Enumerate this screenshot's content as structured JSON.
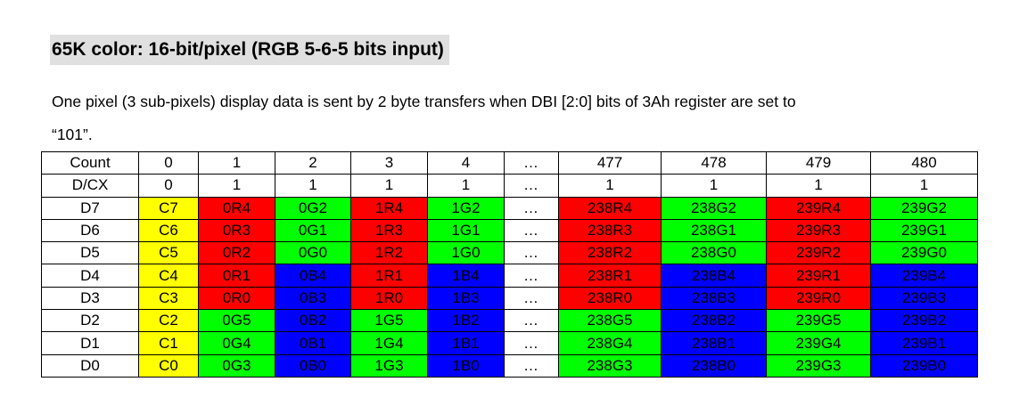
{
  "heading": "65K color: 16-bit/pixel (RGB 5-6-5 bits input)",
  "paragraph": {
    "line1": "One pixel (3 sub-pixels) display data is sent by 2 byte transfers when DBI [2:0] bits of 3Ah register are set to",
    "line2": "“101”."
  },
  "colors": {
    "yellow": "#ffff00",
    "red": "#ff0000",
    "green": "#00ff00",
    "blue": "#0000ff",
    "heading_bg": "#e0e0e0"
  },
  "table": {
    "rows": [
      {
        "label": "Count",
        "cells": [
          {
            "t": "0",
            "c": "w"
          },
          {
            "t": "1",
            "c": "w"
          },
          {
            "t": "2",
            "c": "w"
          },
          {
            "t": "3",
            "c": "w"
          },
          {
            "t": "4",
            "c": "w"
          },
          {
            "t": "…",
            "c": "w"
          },
          {
            "t": "477",
            "c": "w"
          },
          {
            "t": "478",
            "c": "w"
          },
          {
            "t": "479",
            "c": "w"
          },
          {
            "t": "480",
            "c": "w"
          }
        ]
      },
      {
        "label": "D/CX",
        "cells": [
          {
            "t": "0",
            "c": "w"
          },
          {
            "t": "1",
            "c": "w"
          },
          {
            "t": "1",
            "c": "w"
          },
          {
            "t": "1",
            "c": "w"
          },
          {
            "t": "1",
            "c": "w"
          },
          {
            "t": "…",
            "c": "w"
          },
          {
            "t": "1",
            "c": "w"
          },
          {
            "t": "1",
            "c": "w"
          },
          {
            "t": "1",
            "c": "w"
          },
          {
            "t": "1",
            "c": "w"
          }
        ]
      },
      {
        "label": "D7",
        "cells": [
          {
            "t": "C7",
            "c": "y"
          },
          {
            "t": "0R4",
            "c": "r"
          },
          {
            "t": "0G2",
            "c": "g"
          },
          {
            "t": "1R4",
            "c": "r"
          },
          {
            "t": "1G2",
            "c": "g"
          },
          {
            "t": "…",
            "c": "w"
          },
          {
            "t": "238R4",
            "c": "r"
          },
          {
            "t": "238G2",
            "c": "g"
          },
          {
            "t": "239R4",
            "c": "r"
          },
          {
            "t": "239G2",
            "c": "g"
          }
        ]
      },
      {
        "label": "D6",
        "cells": [
          {
            "t": "C6",
            "c": "y"
          },
          {
            "t": "0R3",
            "c": "r"
          },
          {
            "t": "0G1",
            "c": "g"
          },
          {
            "t": "1R3",
            "c": "r"
          },
          {
            "t": "1G1",
            "c": "g"
          },
          {
            "t": "…",
            "c": "w"
          },
          {
            "t": "238R3",
            "c": "r"
          },
          {
            "t": "238G1",
            "c": "g"
          },
          {
            "t": "239R3",
            "c": "r"
          },
          {
            "t": "239G1",
            "c": "g"
          }
        ]
      },
      {
        "label": "D5",
        "cells": [
          {
            "t": "C5",
            "c": "y"
          },
          {
            "t": "0R2",
            "c": "r"
          },
          {
            "t": "0G0",
            "c": "g"
          },
          {
            "t": "1R2",
            "c": "r"
          },
          {
            "t": "1G0",
            "c": "g"
          },
          {
            "t": "…",
            "c": "w"
          },
          {
            "t": "238R2",
            "c": "r"
          },
          {
            "t": "238G0",
            "c": "g"
          },
          {
            "t": "239R2",
            "c": "r"
          },
          {
            "t": "239G0",
            "c": "g"
          }
        ]
      },
      {
        "label": "D4",
        "cells": [
          {
            "t": "C4",
            "c": "y"
          },
          {
            "t": "0R1",
            "c": "r"
          },
          {
            "t": "0B4",
            "c": "b"
          },
          {
            "t": "1R1",
            "c": "r"
          },
          {
            "t": "1B4",
            "c": "b"
          },
          {
            "t": "…",
            "c": "w"
          },
          {
            "t": "238R1",
            "c": "r"
          },
          {
            "t": "238B4",
            "c": "b"
          },
          {
            "t": "239R1",
            "c": "r"
          },
          {
            "t": "239B4",
            "c": "b"
          }
        ]
      },
      {
        "label": "D3",
        "cells": [
          {
            "t": "C3",
            "c": "y"
          },
          {
            "t": "0R0",
            "c": "r"
          },
          {
            "t": "0B3",
            "c": "b"
          },
          {
            "t": "1R0",
            "c": "r"
          },
          {
            "t": "1B3",
            "c": "b"
          },
          {
            "t": "…",
            "c": "w"
          },
          {
            "t": "238R0",
            "c": "r"
          },
          {
            "t": "238B3",
            "c": "b"
          },
          {
            "t": "239R0",
            "c": "r"
          },
          {
            "t": "239B3",
            "c": "b"
          }
        ]
      },
      {
        "label": "D2",
        "cells": [
          {
            "t": "C2",
            "c": "y"
          },
          {
            "t": "0G5",
            "c": "g"
          },
          {
            "t": "0B2",
            "c": "b"
          },
          {
            "t": "1G5",
            "c": "g"
          },
          {
            "t": "1B2",
            "c": "b"
          },
          {
            "t": "…",
            "c": "w"
          },
          {
            "t": "238G5",
            "c": "g"
          },
          {
            "t": "238B2",
            "c": "b"
          },
          {
            "t": "239G5",
            "c": "g"
          },
          {
            "t": "239B2",
            "c": "b"
          }
        ]
      },
      {
        "label": "D1",
        "cells": [
          {
            "t": "C1",
            "c": "y"
          },
          {
            "t": "0G4",
            "c": "g"
          },
          {
            "t": "0B1",
            "c": "b"
          },
          {
            "t": "1G4",
            "c": "g"
          },
          {
            "t": "1B1",
            "c": "b"
          },
          {
            "t": "…",
            "c": "w"
          },
          {
            "t": "238G4",
            "c": "g"
          },
          {
            "t": "238B1",
            "c": "b"
          },
          {
            "t": "239G4",
            "c": "g"
          },
          {
            "t": "239B1",
            "c": "b"
          }
        ]
      },
      {
        "label": "D0",
        "cells": [
          {
            "t": "C0",
            "c": "y"
          },
          {
            "t": "0G3",
            "c": "g"
          },
          {
            "t": "0B0",
            "c": "b"
          },
          {
            "t": "1G3",
            "c": "g"
          },
          {
            "t": "1B0",
            "c": "b"
          },
          {
            "t": "…",
            "c": "w"
          },
          {
            "t": "238G3",
            "c": "g"
          },
          {
            "t": "238B0",
            "c": "b"
          },
          {
            "t": "239G3",
            "c": "g"
          },
          {
            "t": "239B0",
            "c": "b"
          }
        ]
      }
    ]
  }
}
